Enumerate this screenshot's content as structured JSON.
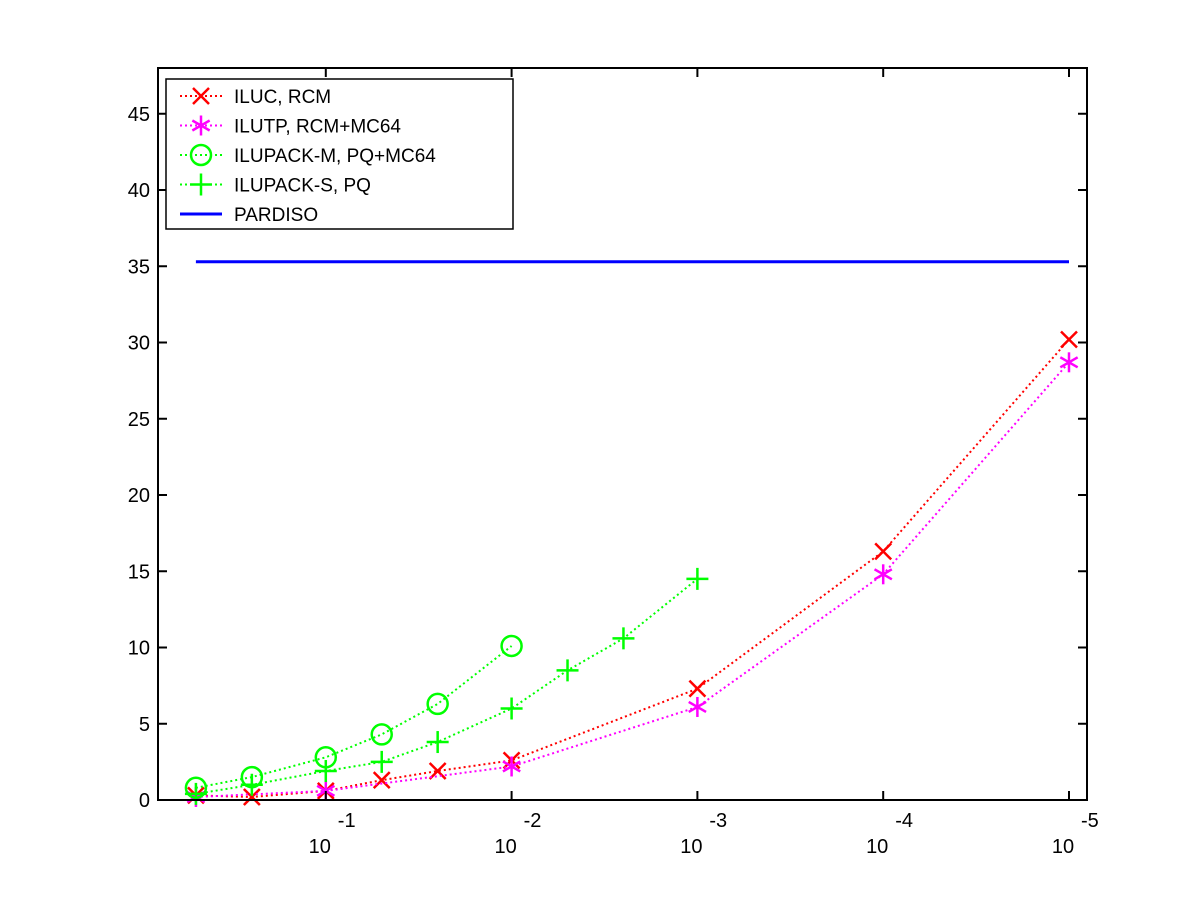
{
  "chart_data": {
    "type": "line",
    "title": "",
    "xlabel": "",
    "ylabel": "",
    "x_scale": "log",
    "x_reversed": true,
    "x_ticks": [
      {
        "base": "10",
        "exp": "-1",
        "value": 0.1
      },
      {
        "base": "10",
        "exp": "-2",
        "value": 0.01
      },
      {
        "base": "10",
        "exp": "-3",
        "value": 0.001
      },
      {
        "base": "10",
        "exp": "-4",
        "value": 0.0001
      },
      {
        "base": "10",
        "exp": "-5",
        "value": 1e-05
      }
    ],
    "xlim": [
      0.8,
      8e-06
    ],
    "ylim": [
      0,
      48
    ],
    "y_ticks": [
      "0",
      "5",
      "10",
      "15",
      "20",
      "25",
      "30",
      "35",
      "40",
      "45"
    ],
    "grid": false,
    "legend_position": "top-left",
    "series": [
      {
        "name": "ILUC, RCM",
        "color": "#ff0000",
        "marker": "x",
        "line_style": "dotted",
        "x": [
          0.5,
          0.25,
          0.1,
          0.05,
          0.025,
          0.01,
          0.001,
          0.0001,
          1e-05
        ],
        "y": [
          0.3,
          0.2,
          0.6,
          1.3,
          1.9,
          2.6,
          7.3,
          16.3,
          30.2
        ]
      },
      {
        "name": "ILUTP, RCM+MC64",
        "color": "#ff00ff",
        "marker": "asterisk",
        "line_style": "dotted",
        "x": [
          0.5,
          0.1,
          0.01,
          0.001,
          0.0001,
          1e-05
        ],
        "y": [
          0.2,
          0.6,
          2.2,
          6.1,
          14.8,
          28.7
        ]
      },
      {
        "name": "ILUPACK-M, PQ+MC64",
        "color": "#00ff00",
        "marker": "circle",
        "line_style": "dotted",
        "x": [
          0.5,
          0.25,
          0.1,
          0.05,
          0.025,
          0.01
        ],
        "y": [
          0.8,
          1.5,
          2.8,
          4.3,
          6.3,
          10.1
        ]
      },
      {
        "name": "ILUPACK-S, PQ",
        "color": "#00ff00",
        "marker": "plus",
        "line_style": "dotted",
        "x": [
          0.5,
          0.25,
          0.1,
          0.05,
          0.025,
          0.01,
          0.005,
          0.0025,
          0.001
        ],
        "y": [
          0.4,
          1.0,
          1.9,
          2.5,
          3.8,
          6.0,
          8.5,
          10.6,
          14.5
        ]
      },
      {
        "name": "PARDISO",
        "color": "#0000ff",
        "marker": "none",
        "line_style": "solid",
        "x": [
          0.5,
          1e-05
        ],
        "y": [
          35.3,
          35.3
        ]
      }
    ]
  }
}
